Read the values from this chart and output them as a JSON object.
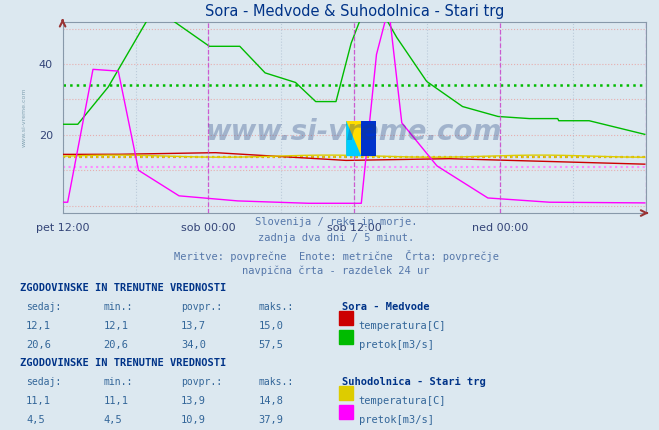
{
  "title": "Sora - Medvode & Suhodolnica - Stari trg",
  "bg_color": "#dce8f0",
  "plot_bg_color": "#dce8f0",
  "xlim": [
    0,
    576
  ],
  "ylim": [
    -2,
    52
  ],
  "yticks": [
    20,
    40
  ],
  "xtick_labels": [
    "pet 12:00",
    "sob 00:00",
    "sob 12:00",
    "ned 00:00"
  ],
  "xtick_positions": [
    0,
    144,
    288,
    432
  ],
  "vline_positions": [
    144,
    288,
    432,
    576
  ],
  "vline_color": "#cc44cc",
  "watermark": "www.si-vreme.com",
  "watermark_color": "#1a3a7a",
  "watermark_alpha": 0.3,
  "sidebar_text": "www.si-vreme.com",
  "subtitle_lines": [
    "Slovenija / reke in morje.",
    "zadnja dva dni / 5 minut.",
    "Meritve: povprečne  Enote: metrične  Črta: povprečje",
    "navpična črta - razdelek 24 ur"
  ],
  "sora_temp_color": "#cc0000",
  "sora_pretok_color": "#00bb00",
  "suho_temp_color": "#ddcc00",
  "suho_pretok_color": "#ff00ff",
  "avg_sora_temp": 13.7,
  "avg_sora_pretok": 34.0,
  "avg_suho_temp": 13.9,
  "avg_suho_pretok": 10.9,
  "table_header": "ZGODOVINSKE IN TRENUTNE VREDNOSTI",
  "table_cols": [
    "sedaj:",
    "min.:",
    "povpr.:",
    "maks.:"
  ],
  "legend1_title": "Sora - Medvode",
  "legend2_title": "Suhodolnica - Stari trg",
  "table1_row1": [
    "12,1",
    "12,1",
    "13,7",
    "15,0"
  ],
  "table1_row2": [
    "20,6",
    "20,6",
    "34,0",
    "57,5"
  ],
  "table2_row1": [
    "11,1",
    "11,1",
    "13,9",
    "14,8"
  ],
  "table2_row2": [
    "4,5",
    "4,5",
    "10,9",
    "37,9"
  ],
  "label1_temp": "temperatura[C]",
  "label1_pretok": "pretok[m3/s]"
}
